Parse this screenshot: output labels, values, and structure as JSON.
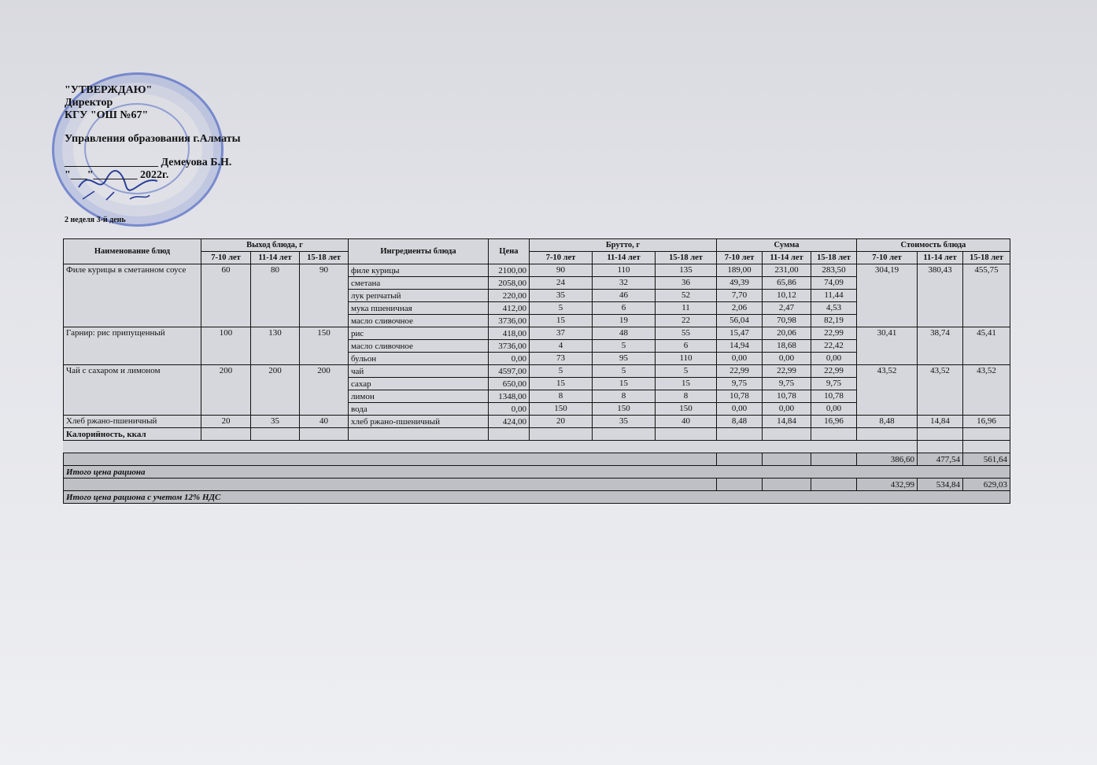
{
  "header": {
    "approve": "\"УТВЕРЖДАЮ\"",
    "position": "Директор",
    "org": "КГУ \"ОШ №67\"",
    "dept": "Управления образования г.Алматы",
    "signer": "_________________ Демеуова Б.Н.",
    "date": "\"___\"________ 2022г.",
    "week_day": "2 неделя 3-й день"
  },
  "stamp_color": "#3a5ac0",
  "table": {
    "headers": {
      "dish": "Наименование блюд",
      "output": "Выход блюда, г",
      "ingredients": "Ингредиенты блюда",
      "price": "Цена",
      "brutto": "Брутто, г",
      "sum": "Сумма",
      "cost": "Стоимость блюда",
      "ages": [
        "7-10 лет",
        "11-14 лет",
        "15-18 лет"
      ]
    },
    "dishes": [
      {
        "name": "Филе курицы в сметанном соусе",
        "output": [
          "60",
          "80",
          "90"
        ],
        "cost": [
          "304,19",
          "380,43",
          "455,75"
        ],
        "ingredients": [
          {
            "name": "филе курицы",
            "price": "2100,00",
            "brutto": [
              "90",
              "110",
              "135"
            ],
            "sum": [
              "189,00",
              "231,00",
              "283,50"
            ]
          },
          {
            "name": "сметана",
            "price": "2058,00",
            "brutto": [
              "24",
              "32",
              "36"
            ],
            "sum": [
              "49,39",
              "65,86",
              "74,09"
            ]
          },
          {
            "name": "лук репчатый",
            "price": "220,00",
            "brutto": [
              "35",
              "46",
              "52"
            ],
            "sum": [
              "7,70",
              "10,12",
              "11,44"
            ]
          },
          {
            "name": "мука пшеничная",
            "price": "412,00",
            "brutto": [
              "5",
              "6",
              "11"
            ],
            "sum": [
              "2,06",
              "2,47",
              "4,53"
            ]
          },
          {
            "name": "масло сливочное",
            "price": "3736,00",
            "brutto": [
              "15",
              "19",
              "22"
            ],
            "sum": [
              "56,04",
              "70,98",
              "82,19"
            ]
          }
        ]
      },
      {
        "name": "Гарнир: рис припущенный",
        "output": [
          "100",
          "130",
          "150"
        ],
        "cost": [
          "30,41",
          "38,74",
          "45,41"
        ],
        "ingredients": [
          {
            "name": "рис",
            "price": "418,00",
            "brutto": [
              "37",
              "48",
              "55"
            ],
            "sum": [
              "15,47",
              "20,06",
              "22,99"
            ]
          },
          {
            "name": "масло сливочное",
            "price": "3736,00",
            "brutto": [
              "4",
              "5",
              "6"
            ],
            "sum": [
              "14,94",
              "18,68",
              "22,42"
            ]
          },
          {
            "name": "бульон",
            "price": "0,00",
            "brutto": [
              "73",
              "95",
              "110"
            ],
            "sum": [
              "0,00",
              "0,00",
              "0,00"
            ]
          }
        ]
      },
      {
        "name": "Чай с сахаром и лимоном",
        "output": [
          "200",
          "200",
          "200"
        ],
        "cost": [
          "43,52",
          "43,52",
          "43,52"
        ],
        "ingredients": [
          {
            "name": "чай",
            "price": "4597,00",
            "brutto": [
              "5",
              "5",
              "5"
            ],
            "sum": [
              "22,99",
              "22,99",
              "22,99"
            ]
          },
          {
            "name": "сахар",
            "price": "650,00",
            "brutto": [
              "15",
              "15",
              "15"
            ],
            "sum": [
              "9,75",
              "9,75",
              "9,75"
            ]
          },
          {
            "name": "лимон",
            "price": "1348,00",
            "brutto": [
              "8",
              "8",
              "8"
            ],
            "sum": [
              "10,78",
              "10,78",
              "10,78"
            ]
          },
          {
            "name": "вода",
            "price": "0,00",
            "brutto": [
              "150",
              "150",
              "150"
            ],
            "sum": [
              "0,00",
              "0,00",
              "0,00"
            ]
          }
        ]
      },
      {
        "name": "Хлеб ржано-пшеничный",
        "output": [
          "20",
          "35",
          "40"
        ],
        "cost": [
          "8,48",
          "14,84",
          "16,96"
        ],
        "ingredients": [
          {
            "name": "хлеб ржано-пшеничный",
            "price": "424,00",
            "brutto": [
              "20",
              "35",
              "40"
            ],
            "sum": [
              "8,48",
              "14,84",
              "16,96"
            ]
          }
        ]
      }
    ],
    "calories_label": "Калорийность, ккал",
    "total_label": "Итого цена рациона",
    "total": [
      "386,60",
      "477,54",
      "561,64"
    ],
    "total_vat_label": "Итого цена рациона с учетом 12% НДС",
    "total_vat": [
      "432,99",
      "534,84",
      "629,03"
    ]
  }
}
